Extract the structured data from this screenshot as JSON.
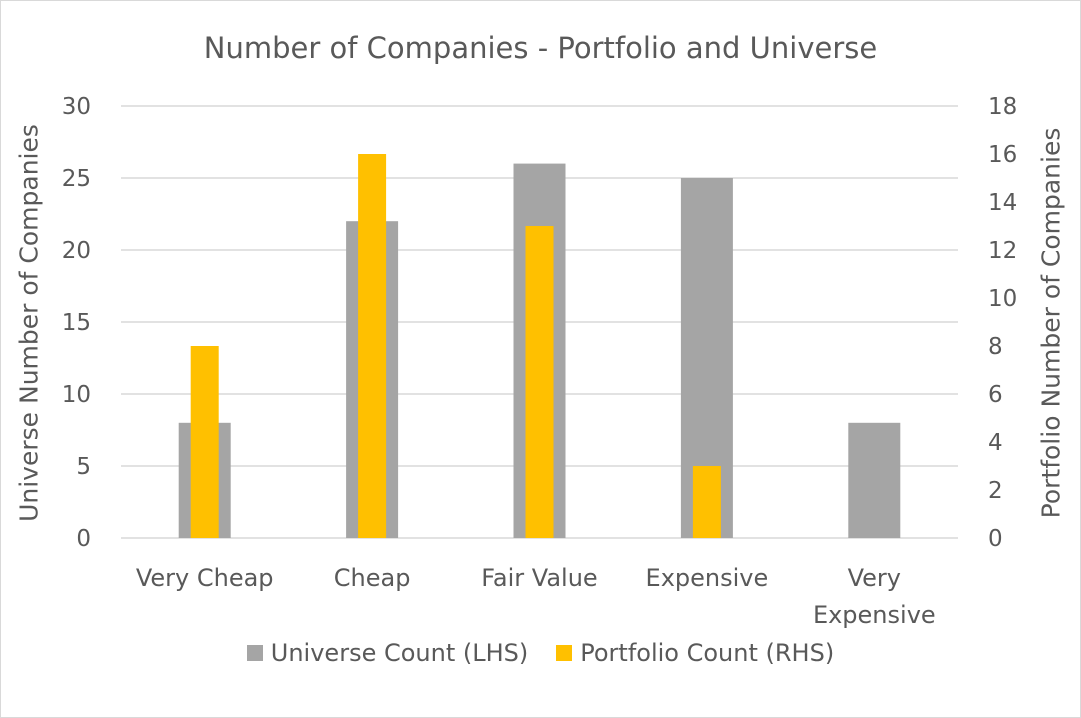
{
  "chart_data": {
    "type": "bar",
    "title": "Number of Companies - Portfolio and Universe",
    "categories": [
      "Very Cheap",
      "Cheap",
      "Fair Value",
      "Expensive",
      "Very Expensive"
    ],
    "category_lines": [
      [
        "Very Cheap"
      ],
      [
        "Cheap"
      ],
      [
        "Fair Value"
      ],
      [
        "Expensive"
      ],
      [
        "Very",
        "Expensive"
      ]
    ],
    "series": [
      {
        "name": "Universe Count (LHS)",
        "axis": "left",
        "color": "#a5a5a5",
        "values": [
          8,
          22,
          26,
          25,
          8
        ]
      },
      {
        "name": "Portfolio Count (RHS)",
        "axis": "right",
        "color": "#ffc000",
        "values": [
          8,
          16,
          13,
          3,
          0
        ]
      }
    ],
    "ylabel_left": "Universe Number of Companies",
    "ylabel_right": "Portfolio Number of Companies",
    "ylim_left": [
      0,
      30
    ],
    "ylim_right": [
      0,
      18
    ],
    "yticks_left": [
      0,
      5,
      10,
      15,
      20,
      25,
      30
    ],
    "yticks_right": [
      0,
      2,
      4,
      6,
      8,
      10,
      12,
      14,
      16,
      18
    ],
    "grid": true,
    "legend_position": "bottom"
  }
}
